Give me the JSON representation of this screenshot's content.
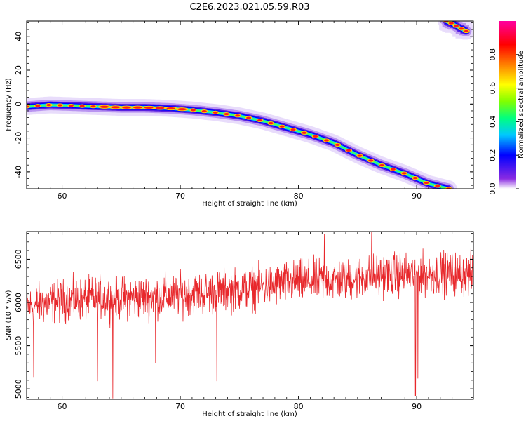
{
  "figure": {
    "title": "C2E6.2023.021.05.59.R03"
  },
  "chart_data": [
    {
      "type": "heatmap",
      "xlabel": "Height of straight line (km)",
      "ylabel": "Frequency (Hz)",
      "xlim": [
        57,
        94.8
      ],
      "ylim": [
        -50,
        49
      ],
      "x_ticks": [
        60,
        70,
        80,
        90
      ],
      "y_ticks": [
        -40,
        -20,
        0,
        20,
        40
      ],
      "ridge": {
        "height_km": [
          57,
          59,
          61,
          63,
          65,
          67,
          69,
          71,
          73,
          75,
          77,
          79,
          81,
          83,
          85,
          87,
          89,
          91,
          92.7
        ],
        "frequency_hz": [
          -1.5,
          -0.5,
          -1,
          -1.5,
          -2,
          -2,
          -2.5,
          -3.5,
          -5,
          -7,
          -10,
          -14,
          -18,
          -23,
          -30,
          -36,
          -41,
          -47,
          -50
        ]
      },
      "aliased_ridge": {
        "height_km": [
          92.5,
          93.0,
          93.5,
          94.2
        ],
        "frequency_hz": [
          49,
          47.5,
          45.5,
          43
        ]
      },
      "colorbar": {
        "label": "Normalized spectral amplitude",
        "ticks": [
          0.0,
          0.2,
          0.4,
          0.6,
          0.8
        ],
        "range": [
          0,
          1
        ],
        "colormap": [
          "#ffffff",
          "#8a2be2",
          "#0000ff",
          "#00c8ff",
          "#00ff80",
          "#80ff00",
          "#ffff00",
          "#ff8000",
          "#ff0000",
          "#ff00a0"
        ]
      }
    },
    {
      "type": "line",
      "xlabel": "Height of straight line (km)",
      "ylabel": "SNR (10 * v/v)",
      "xlim": [
        57,
        94.8
      ],
      "ylim": [
        4880,
        6820
      ],
      "x_ticks": [
        60,
        70,
        80,
        90
      ],
      "y_ticks": [
        5000,
        5500,
        6000,
        6500
      ],
      "series_color": "#e8282c",
      "series": [
        {
          "x": [
            57,
            59,
            61,
            63,
            65,
            67,
            69,
            71,
            73,
            75,
            77,
            79,
            81,
            83,
            85,
            87,
            89,
            91,
            93,
            94.8
          ],
          "y": [
            5950,
            6000,
            6030,
            6050,
            6050,
            6060,
            6080,
            6100,
            6120,
            6150,
            6180,
            6220,
            6250,
            6260,
            6280,
            6320,
            6330,
            6330,
            6340,
            6320
          ],
          "spread": 210,
          "spikes": [
            {
              "x": 57.6,
              "y": 5130
            },
            {
              "x": 63.0,
              "y": 5090
            },
            {
              "x": 64.3,
              "y": 4890
            },
            {
              "x": 67.9,
              "y": 5300
            },
            {
              "x": 73.1,
              "y": 5090
            },
            {
              "x": 82.2,
              "y": 6790
            },
            {
              "x": 86.2,
              "y": 6820
            },
            {
              "x": 89.9,
              "y": 4920
            },
            {
              "x": 90.1,
              "y": 5120
            }
          ]
        }
      ]
    }
  ]
}
